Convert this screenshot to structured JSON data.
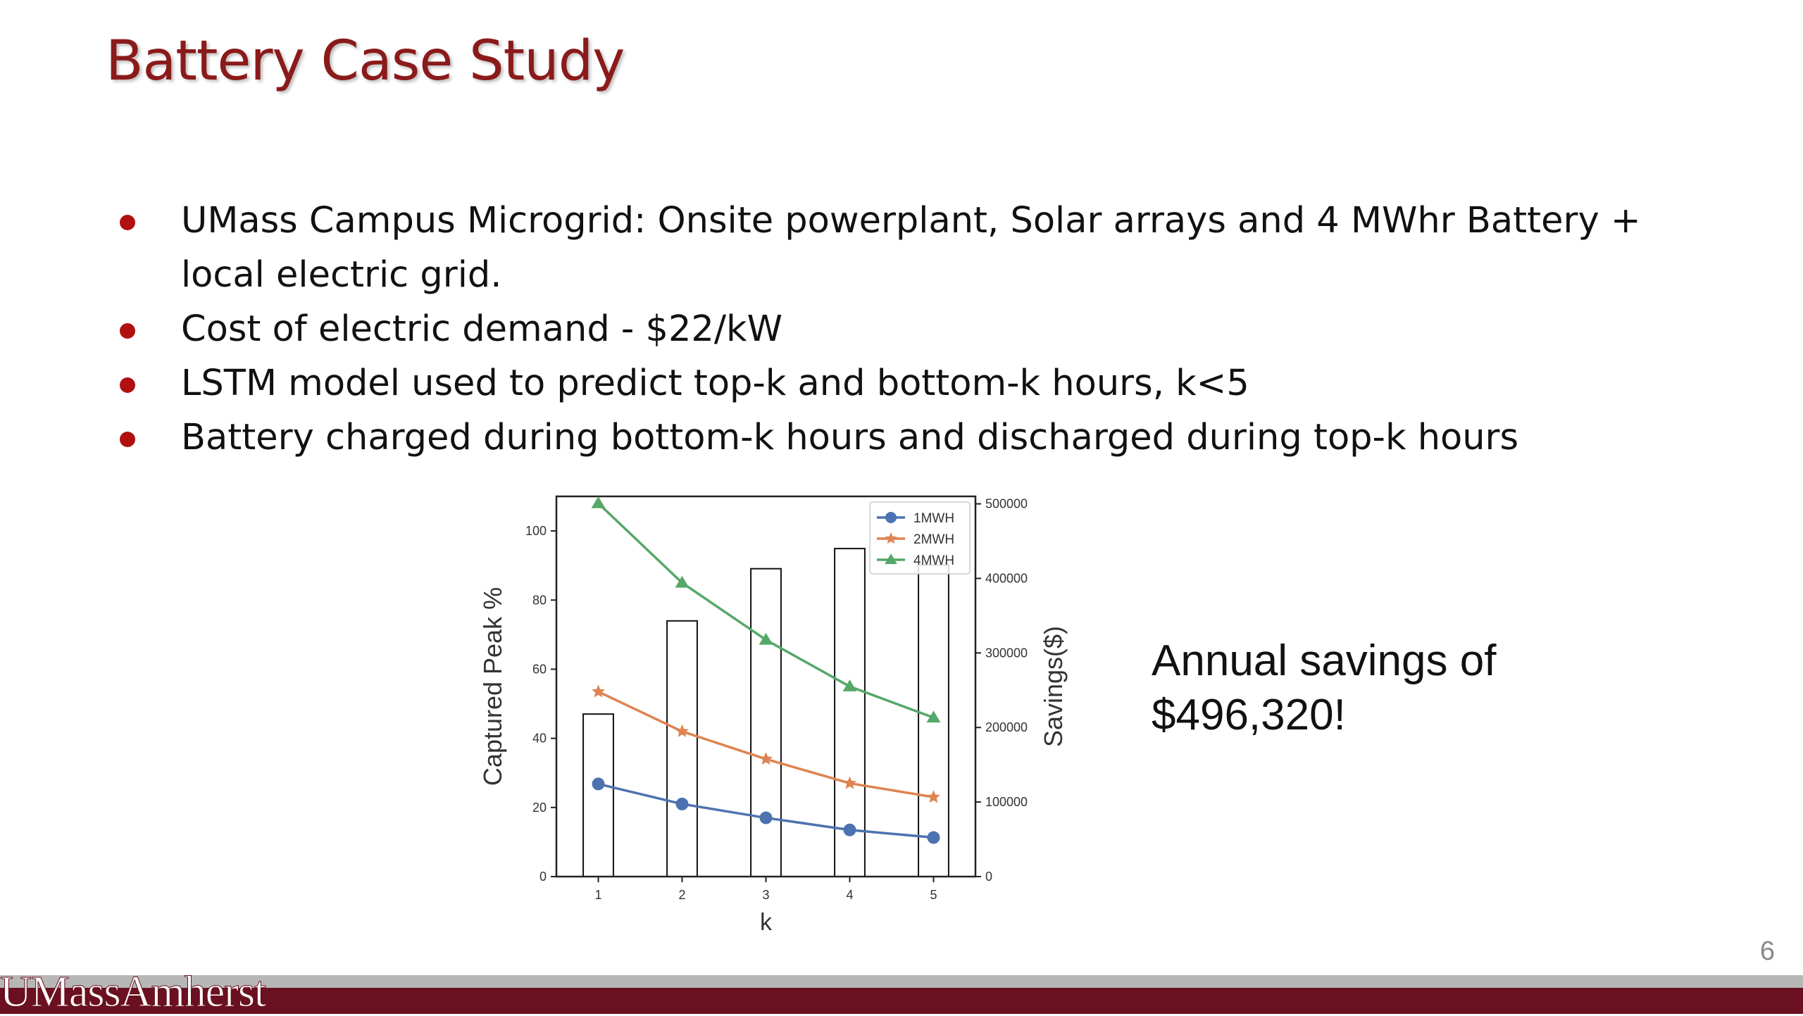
{
  "slide": {
    "title": "Battery Case Study",
    "bullets": [
      "UMass  Campus Microgrid: Onsite powerplant, Solar arrays and 4 MWhr Battery + local electric grid.",
      "Cost of electric demand - $22/kW",
      "LSTM model used to predict top-k and bottom-k hours, k<5",
      "Battery charged during bottom-k hours and discharged during top-k hours"
    ],
    "callout": [
      "Annual savings of",
      "$496,320!"
    ],
    "page_number": "6",
    "footer_logo": "UMassAmherst"
  },
  "colors": {
    "title": "#8b1a1a",
    "bullet": "#b01010",
    "footer": "#6a1020",
    "footer_gray": "#b7b7b7",
    "series_1mwh": "#4c72b0",
    "series_2mwh": "#dd8452",
    "series_4mwh": "#55a868"
  },
  "chart_data": {
    "type": "bar+line",
    "xlabel": "k",
    "ylabel_left": "Captured Peak %",
    "ylabel_right": "Savings($)",
    "x": [
      1,
      2,
      3,
      4,
      5
    ],
    "ylim_left": [
      0,
      110
    ],
    "ylim_right": [
      0,
      510000
    ],
    "yticks_left": [
      0,
      20,
      40,
      60,
      80,
      100
    ],
    "yticks_right": [
      0,
      100000,
      200000,
      300000,
      400000,
      500000
    ],
    "bars": {
      "axis": "right",
      "values": [
        218000,
        343000,
        413000,
        440000,
        418000
      ]
    },
    "series": [
      {
        "name": "1MWH",
        "marker": "circle",
        "values": [
          26.8,
          21.0,
          17.0,
          13.5,
          11.3
        ]
      },
      {
        "name": "2MWH",
        "marker": "star",
        "values": [
          53.5,
          42.0,
          34.0,
          27.0,
          23.0
        ]
      },
      {
        "name": "4MWH",
        "marker": "triangle",
        "values": [
          108.0,
          85.0,
          68.5,
          55.0,
          46.0
        ]
      }
    ],
    "legend": "top-right",
    "grid": false
  }
}
